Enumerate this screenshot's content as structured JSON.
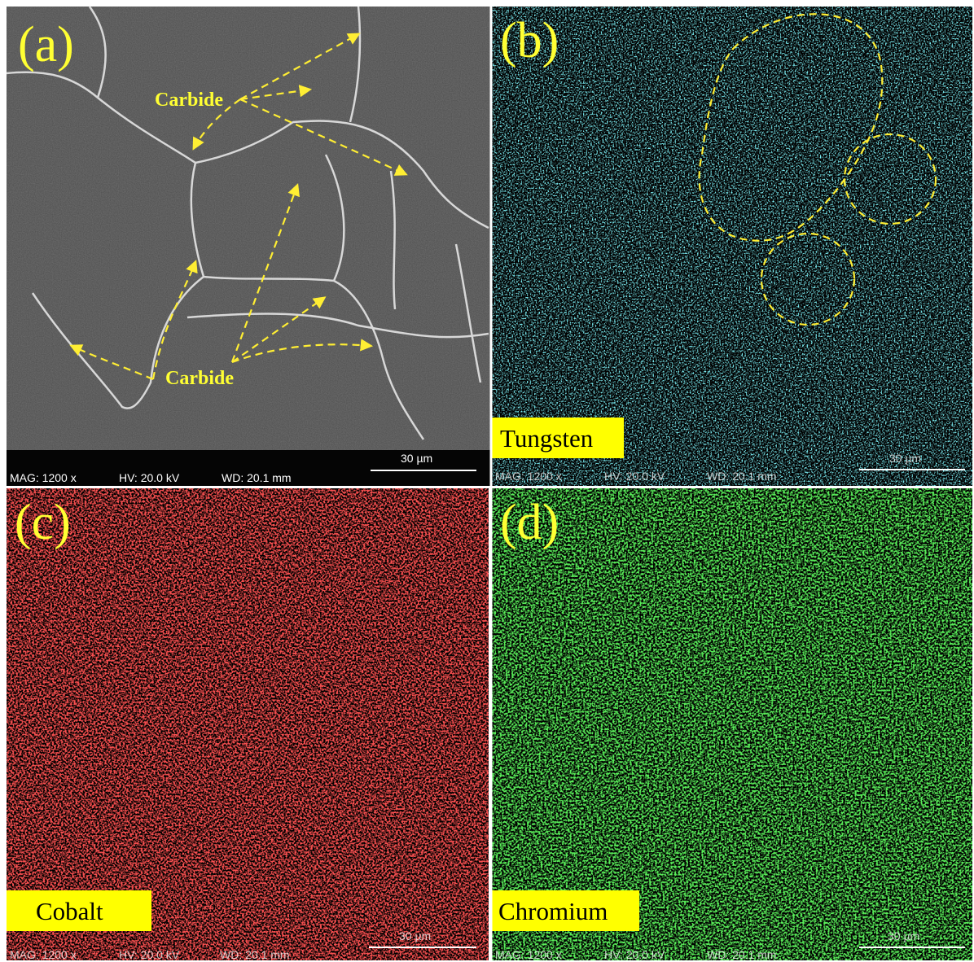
{
  "panels": [
    {
      "label": "(a)",
      "annotations": [
        "Carbide",
        "Carbide"
      ],
      "info": {
        "mag": "MAG: 1200 x",
        "hv": "HV: 20.0 kV",
        "wd": "WD: 20.1 mm",
        "scale": "30 µm"
      }
    },
    {
      "label": "(b)",
      "element": "Tungsten",
      "info": {
        "mag": "MAG: 1200 x",
        "hv": "HV: 20.0 kV",
        "wd": "WD: 20.1 mm",
        "scale": "30 µm"
      }
    },
    {
      "label": "(c)",
      "element": "Cobalt",
      "info": {
        "mag": "MAG: 1200 x",
        "hv": "HV: 20.0 kV",
        "wd": "WD: 20.1 mm",
        "scale": "30 µm"
      }
    },
    {
      "label": "(d)",
      "element": "Chromium",
      "info": {
        "mag": "MAG: 1200 x",
        "hv": "HV: 20.0 kV",
        "wd": "WD: 20.1 mm",
        "scale": "30 µm"
      }
    }
  ]
}
